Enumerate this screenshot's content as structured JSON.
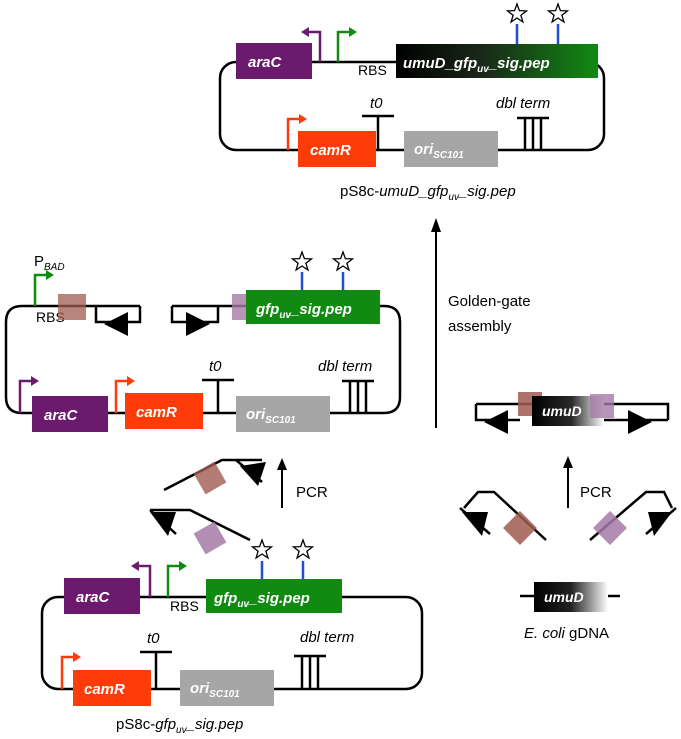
{
  "colors": {
    "araC": "#6b1a6e",
    "camR": "#ff3b0a",
    "gfp": "#118a11",
    "ori": "#a6a6a6",
    "promoter_purple": "#6b1a6e",
    "promoter_green": "#118a11",
    "promoter_red": "#ff3b0a",
    "star_stem": "#1f4fd6",
    "overhang_brown": "#a05c52",
    "overhang_purple": "#a47aa8"
  },
  "icons": [
    "promoter-arrow-icon",
    "terminator-icon",
    "star-icon",
    "arrow-up-icon",
    "bsai-site-triangle-icon"
  ],
  "top_plasmid": {
    "araC": "araC",
    "rbs": "RBS",
    "gene_main": "umuD_gfp",
    "gene_sub": "uv",
    "gene_tail": "_sig.pep",
    "t0": "t0",
    "dbl_term": "dbl term",
    "camR": "camR",
    "ori_main": "ori",
    "ori_sub": "SC101",
    "caption_prefix": "pS8c-",
    "caption_main": "umuD_gfp",
    "caption_sub": "uv",
    "caption_tail": "_sig.pep"
  },
  "middle_plasmid": {
    "pbad_main": "P",
    "pbad_sub": "BAD",
    "rbs": "RBS",
    "gene_main": "gfp",
    "gene_sub": "uv",
    "gene_tail": "_sig.pep",
    "t0": "t0",
    "dbl_term": "dbl term",
    "araC": "araC",
    "camR": "camR",
    "ori_main": "ori",
    "ori_sub": "SC101"
  },
  "bottom_plasmid": {
    "araC": "araC",
    "rbs": "RBS",
    "gene_main": "gfp",
    "gene_sub": "uv",
    "gene_tail": "_sig.pep",
    "t0": "t0",
    "dbl_term": "dbl term",
    "camR": "camR",
    "ori_main": "ori",
    "ori_sub": "SC101",
    "caption_prefix": "pS8c-",
    "caption_main": "gfp",
    "caption_sub": "uv",
    "caption_tail": "_sig.pep"
  },
  "steps": {
    "pcr_left": "PCR",
    "pcr_right": "PCR",
    "golden_gate_line1": "Golden-gate",
    "golden_gate_line2": "assembly"
  },
  "insert": {
    "umuD_fragment": "umuD",
    "umuD_gdna": "umuD",
    "gdna_organism": "E. coli",
    "gdna_suffix": " gDNA"
  }
}
